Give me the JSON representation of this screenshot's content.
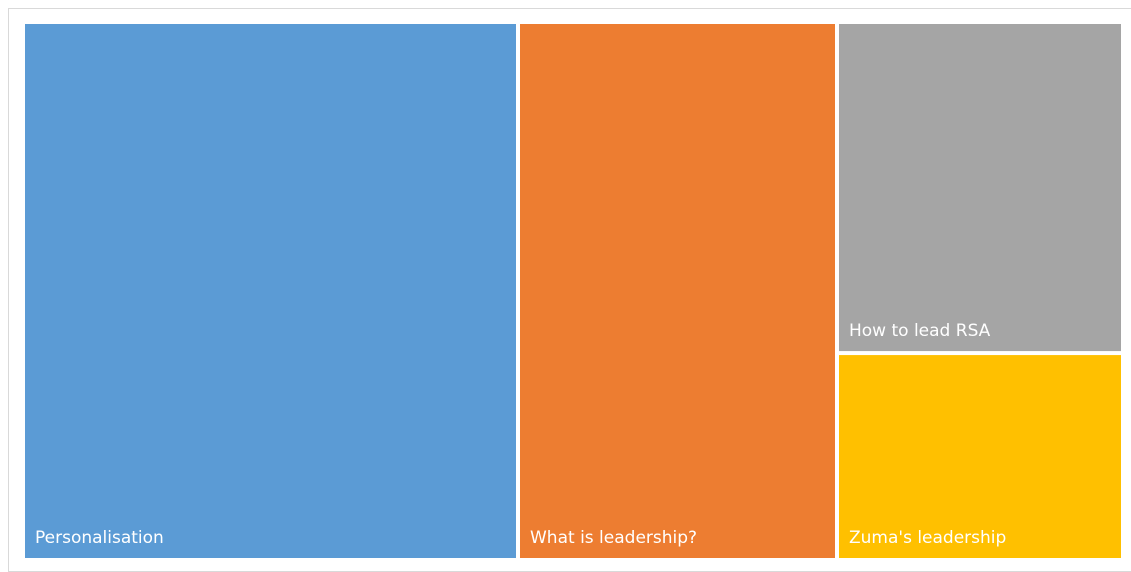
{
  "chart_data": {
    "type": "treemap",
    "categories": [
      "Personalisation",
      "What is leadership?",
      "How to lead RSA",
      "Zuma's leadership"
    ],
    "values": [
      45,
      29,
      16,
      10
    ],
    "colors": [
      "#5b9bd5",
      "#ed7d31",
      "#a5a5a5",
      "#ffc000"
    ]
  }
}
